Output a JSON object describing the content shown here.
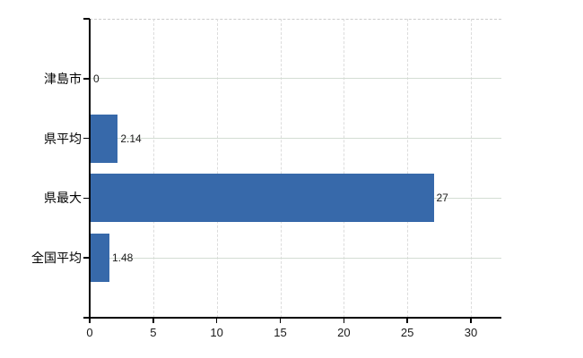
{
  "chart_data": {
    "type": "bar",
    "orientation": "horizontal",
    "title": "",
    "xlabel": "",
    "ylabel": "",
    "categories": [
      "津島市",
      "県平均",
      "県最大",
      "全国平均"
    ],
    "values": [
      0,
      2.14,
      27,
      1.48
    ],
    "value_labels": [
      "0",
      "2.14",
      "27",
      "1.48"
    ],
    "x_ticks": [
      "0",
      "5",
      "10",
      "15",
      "20",
      "25",
      "30"
    ],
    "x_tick_values": [
      0,
      5,
      10,
      15,
      20,
      25,
      30
    ],
    "xlim": [
      0,
      32.4
    ],
    "legend": "none",
    "grid": {
      "horizontal": "solid",
      "vertical": "dashed",
      "top_border": "dashed"
    },
    "colors": {
      "bar": "#3769aa",
      "axis": "#000000",
      "h_gridline": "#d3ddd3",
      "v_gridline": "#dcdcdc",
      "top_border": "#cccccc",
      "text": "#000000",
      "background": "#ffffff"
    }
  }
}
